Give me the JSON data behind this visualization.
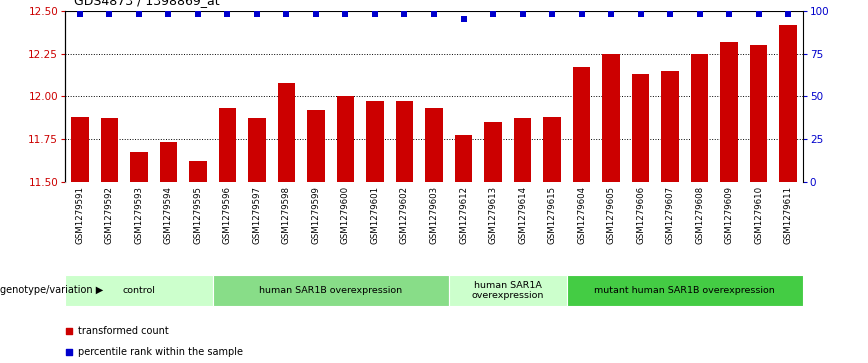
{
  "title": "GDS4873 / 1398869_at",
  "samples": [
    "GSM1279591",
    "GSM1279592",
    "GSM1279593",
    "GSM1279594",
    "GSM1279595",
    "GSM1279596",
    "GSM1279597",
    "GSM1279598",
    "GSM1279599",
    "GSM1279600",
    "GSM1279601",
    "GSM1279602",
    "GSM1279603",
    "GSM1279612",
    "GSM1279613",
    "GSM1279614",
    "GSM1279615",
    "GSM1279604",
    "GSM1279605",
    "GSM1279606",
    "GSM1279607",
    "GSM1279608",
    "GSM1279609",
    "GSM1279610",
    "GSM1279611"
  ],
  "bar_values": [
    11.88,
    11.87,
    11.67,
    11.73,
    11.62,
    11.93,
    11.87,
    12.08,
    11.92,
    12.0,
    11.97,
    11.97,
    11.93,
    11.77,
    11.85,
    11.87,
    11.88,
    12.17,
    12.25,
    12.13,
    12.15,
    12.25,
    12.32,
    12.3,
    12.42
  ],
  "percentile_values": [
    98,
    98,
    98,
    98,
    98,
    98,
    98,
    98,
    98,
    98,
    98,
    98,
    98,
    95,
    98,
    98,
    98,
    98,
    98,
    98,
    98,
    98,
    98,
    98,
    98
  ],
  "bar_color": "#cc0000",
  "dot_color": "#0000cc",
  "ylim_left": [
    11.5,
    12.5
  ],
  "yticks_left": [
    11.5,
    11.75,
    12.0,
    12.25,
    12.5
  ],
  "yticks_right": [
    0,
    25,
    50,
    75,
    100
  ],
  "groups": [
    {
      "label": "control",
      "start": 0,
      "end": 5,
      "color": "#ccffcc"
    },
    {
      "label": "human SAR1B overexpression",
      "start": 5,
      "end": 13,
      "color": "#88dd88"
    },
    {
      "label": "human SAR1A\noverexpression",
      "start": 13,
      "end": 17,
      "color": "#ccffcc"
    },
    {
      "label": "mutant human SAR1B overexpression",
      "start": 17,
      "end": 25,
      "color": "#44cc44"
    }
  ],
  "xlabel_text": "genotype/variation",
  "legend_items": [
    {
      "color": "#cc0000",
      "label": "transformed count"
    },
    {
      "color": "#0000cc",
      "label": "percentile rank within the sample"
    }
  ],
  "bg_color": "#ffffff",
  "tick_label_color_left": "#cc0000",
  "tick_label_color_right": "#0000cc",
  "xtick_bg_color": "#cccccc"
}
